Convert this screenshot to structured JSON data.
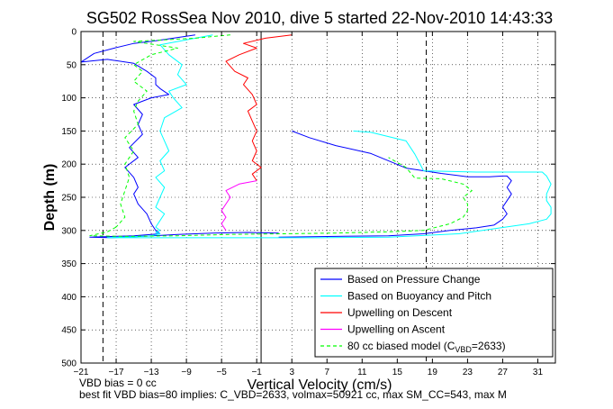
{
  "chart_data": {
    "type": "line",
    "title": "SG502 RossSea Nov 2010, dive 5 started 22-Nov-2010 14:43:33",
    "xlabel": "Vertical Velocity (cm/s)",
    "ylabel": "Depth (m)",
    "xlim": [
      -21,
      33
    ],
    "ylim": [
      500,
      0
    ],
    "y_reversed": true,
    "grid": true,
    "x_ticks": [
      -21,
      -17,
      -13,
      -9,
      -5,
      -1,
      3,
      7,
      11,
      15,
      19,
      23,
      27,
      31
    ],
    "y_ticks": [
      0,
      50,
      100,
      150,
      200,
      250,
      300,
      350,
      400,
      450,
      500
    ],
    "legend_position": "bottom-right",
    "reference_lines": [
      {
        "x": -0.5,
        "style": "solid"
      },
      {
        "x": -18.5,
        "style": "dashed"
      },
      {
        "x": 18.3,
        "style": "dashed"
      }
    ],
    "series": [
      {
        "name": "Based on Pressure Change",
        "color": "#0000ff",
        "style": "solid",
        "segments": [
          {
            "x": [
              -8,
              -10.5,
              -12.5,
              -15,
              -17.5,
              -19.5,
              -21,
              -18,
              -15,
              -13.5,
              -12.5,
              -12.5,
              -12,
              -11,
              -13,
              -15,
              -14,
              -14.5,
              -14,
              -15.5,
              -14.5,
              -16,
              -15,
              -14.5,
              -15,
              -14.5,
              -13.5,
              -13,
              -12.5,
              -12
            ],
            "y": [
              5,
              10,
              14,
              18,
              26,
              33,
              46,
              42,
              48,
              60,
              70,
              80,
              86,
              95,
              100,
              110,
              125,
              140,
              155,
              175,
              190,
              205,
              220,
              235,
              245,
              260,
              275,
              290,
              300,
              305
            ]
          },
          {
            "x": [
              -12,
              -15,
              -20,
              -17.5,
              -14,
              -10,
              -6,
              -2,
              1.5
            ],
            "y": [
              305,
              308,
              310,
              311,
              309,
              306,
              304,
              303,
              304
            ]
          },
          {
            "x": [
              1.5,
              8,
              14,
              18,
              21,
              24,
              26,
              27,
              27.5,
              27,
              27.5,
              28,
              27.5,
              28,
              27.5,
              27,
              25.5,
              23,
              20,
              16,
              12,
              8,
              5,
              3
            ],
            "y": [
              310,
              309,
              308,
              305,
              300,
              296,
              292,
              283,
              275,
              265,
              255,
              245,
              235,
              225,
              218,
              218,
              219,
              219,
              214,
              206,
              184,
              172,
              160,
              150
            ]
          }
        ]
      },
      {
        "name": "Based on Buoyancy and Pitch",
        "color": "#00ffff",
        "style": "solid",
        "segments": [
          {
            "x": [
              -6,
              -8,
              -12,
              -11,
              -9.5,
              -10,
              -9,
              -11,
              -10.5,
              -9.5,
              -11.5,
              -12,
              -11.5,
              -11,
              -12,
              -11.5,
              -12.5,
              -11.5,
              -12,
              -12.5,
              -11.5,
              -12,
              -12.5,
              -12,
              -12.5,
              -12,
              -13
            ],
            "y": [
              5,
              10,
              20,
              35,
              50,
              65,
              80,
              90,
              100,
              115,
              130,
              150,
              165,
              180,
              195,
              210,
              220,
              235,
              250,
              265,
              275,
              285,
              295,
              300,
              303,
              305,
              308
            ]
          },
          {
            "x": [
              -13,
              -16,
              -18,
              -14,
              -8,
              -2,
              6,
              14,
              22,
              30,
              32,
              32.5,
              32.5,
              32,
              32,
              32.5,
              32,
              31.5,
              24,
              18,
              17,
              16,
              12,
              10
            ],
            "y": [
              308,
              310,
              311,
              311,
              311,
              311,
              311,
              310,
              305,
              290,
              283,
              275,
              265,
              255,
              245,
              230,
              218,
              212,
              212,
              210,
              185,
              165,
              152,
              150
            ]
          }
        ]
      },
      {
        "name": "Upwelling on Descent",
        "color": "#ff0000",
        "style": "solid",
        "segments": [
          {
            "x": [
              3,
              0,
              -2.5,
              -1,
              -3,
              -4.5,
              -3.5,
              -2,
              -2.5,
              -1.5,
              -1,
              -2,
              -1.5,
              -1,
              -1.5,
              -1,
              -1.5,
              -0.5,
              -1.5,
              -1
            ],
            "y": [
              5,
              10,
              18,
              25,
              35,
              45,
              60,
              70,
              80,
              95,
              110,
              120,
              135,
              150,
              165,
              180,
              195,
              205,
              215,
              225
            ]
          }
        ]
      },
      {
        "name": "Upwelling on Ascent",
        "color": "#ff00ff",
        "style": "solid",
        "segments": [
          {
            "x": [
              -1,
              -3,
              -4.5,
              -4,
              -4.5,
              -5,
              -4.5,
              -5,
              -4.5
            ],
            "y": [
              225,
              230,
              240,
              250,
              260,
              270,
              280,
              290,
              300
            ]
          }
        ]
      },
      {
        "name": "80 cc biased model (C_VBD=2633)",
        "color": "#00ff00",
        "style": "dashed",
        "segments": [
          {
            "x": [
              -4,
              -8,
              -15,
              -10,
              -13,
              -15,
              -14,
              -15,
              -13.5,
              -14.5,
              -15,
              -14.5,
              -16,
              -15,
              -16,
              -15.5,
              -16,
              -16.5,
              -16,
              -17
            ],
            "y": [
              5,
              10,
              15,
              25,
              35,
              50,
              60,
              75,
              90,
              105,
              120,
              140,
              160,
              180,
              200,
              220,
              240,
              260,
              280,
              295
            ]
          },
          {
            "x": [
              -17,
              -18,
              -20,
              -16,
              -10,
              -4,
              2,
              8,
              14,
              18,
              21,
              22.5,
              23,
              23,
              22.5,
              23.5,
              22.5,
              20,
              17,
              16,
              14
            ],
            "y": [
              295,
              302,
              308,
              309,
              308,
              306,
              305,
              304,
              302,
              300,
              290,
              280,
              270,
              260,
              250,
              240,
              230,
              222,
              221,
              205,
              190
            ]
          }
        ]
      }
    ],
    "legend": {
      "entries": [
        {
          "label": "Based on Pressure Change",
          "color": "#0000ff",
          "style": "solid"
        },
        {
          "label": "Based on Buoyancy and Pitch",
          "color": "#00ffff",
          "style": "solid"
        },
        {
          "label": "Upwelling on Descent",
          "color": "#ff0000",
          "style": "solid"
        },
        {
          "label": "Upwelling on Ascent",
          "color": "#ff00ff",
          "style": "solid"
        },
        {
          "label": "80 cc biased model (C",
          "sub": "VBD",
          "suffix": "=2633)",
          "color": "#00ff00",
          "style": "dashed"
        }
      ]
    }
  },
  "notes": {
    "line1": "VBD bias = 0 cc",
    "line2": "best fit VBD bias=80 implies: C_VBD=2633, volmax=50921 cc, max SM_CC=543, max M"
  }
}
